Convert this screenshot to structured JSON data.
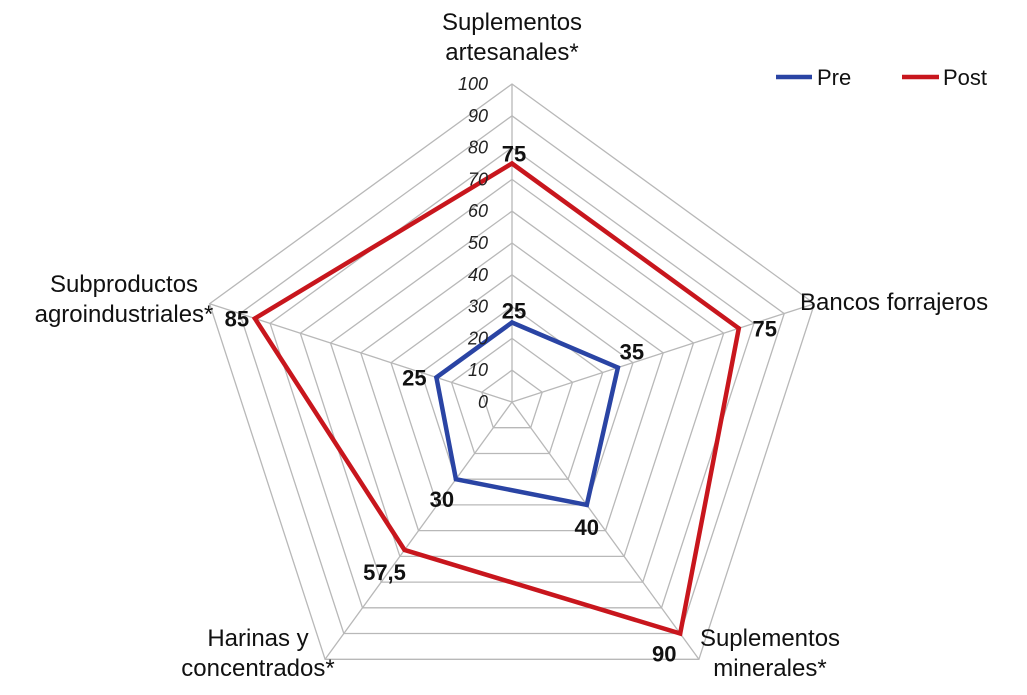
{
  "chart_data": {
    "type": "radar",
    "categories": [
      [
        "Suplementos",
        "artesanales*"
      ],
      [
        "Bancos forrajeros"
      ],
      [
        "Suplementos",
        "minerales*"
      ],
      [
        "Harinas y",
        "concentrados*"
      ],
      [
        "Subproductos",
        "agroindustriales*"
      ]
    ],
    "series": [
      {
        "name": "Pre",
        "values": [
          25,
          35,
          40,
          30,
          25
        ],
        "labels": [
          "25",
          "35",
          "40",
          "30",
          "25"
        ],
        "color": "#2a44a4"
      },
      {
        "name": "Post",
        "values": [
          75,
          75,
          90,
          57.5,
          85
        ],
        "labels": [
          "75",
          "75",
          "90",
          "57,5",
          "85"
        ],
        "color": "#c8161d"
      }
    ],
    "rlim": [
      0,
      100
    ],
    "ticks": [
      0,
      10,
      20,
      30,
      40,
      50,
      60,
      70,
      80,
      90,
      100
    ],
    "legend_position": "top-right",
    "grid": true
  }
}
